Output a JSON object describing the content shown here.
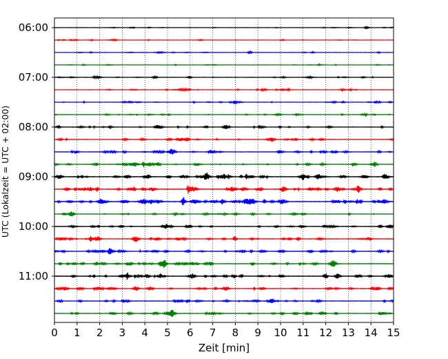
{
  "chart_data": {
    "type": "line",
    "title": "",
    "xlabel": "Zeit  [min]",
    "ylabel": "UTC (Lokalzeit = UTC + 02:00)",
    "xlim": [
      0,
      15
    ],
    "xticks": [
      "0",
      "1",
      "2",
      "3",
      "4",
      "5",
      "6",
      "7",
      "8",
      "9",
      "10",
      "11",
      "12",
      "13",
      "14",
      "15"
    ],
    "yticks": [
      {
        "trace": 0,
        "label": "06:00"
      },
      {
        "trace": 4,
        "label": "07:00"
      },
      {
        "trace": 8,
        "label": "08:00"
      },
      {
        "trace": 12,
        "label": "09:00"
      },
      {
        "trace": 16,
        "label": "10:00"
      },
      {
        "trace": 20,
        "label": "11:00"
      }
    ],
    "trace_count": 24,
    "trace_interval_min": 15,
    "grid": "vertical-dotted",
    "colors": [
      "#000000",
      "#ff0000",
      "#0000ff",
      "#008000"
    ],
    "trace_activity": [
      0.15,
      0.2,
      0.2,
      0.2,
      0.3,
      0.35,
      0.3,
      0.35,
      0.45,
      0.5,
      0.55,
      0.55,
      0.75,
      0.85,
      0.9,
      0.4,
      0.55,
      0.6,
      0.6,
      0.65,
      0.75,
      0.6,
      0.55,
      0.55
    ],
    "events": [
      {
        "trace": 0,
        "t": 13.8,
        "amp": 0.35
      },
      {
        "trace": 2,
        "t": 8.65,
        "amp": 0.4
      },
      {
        "trace": 6,
        "t": 8.0,
        "amp": 0.5
      },
      {
        "trace": 8,
        "t": 4.5,
        "amp": 0.4
      },
      {
        "trace": 12,
        "t": 11.0,
        "amp": 0.55
      },
      {
        "trace": 12,
        "t": 14.6,
        "amp": 0.6
      },
      {
        "trace": 13,
        "t": 8.0,
        "amp": 0.45
      },
      {
        "trace": 14,
        "t": 5.7,
        "amp": 1.2
      },
      {
        "trace": 20,
        "t": 12.0,
        "amp": 0.5
      }
    ]
  }
}
